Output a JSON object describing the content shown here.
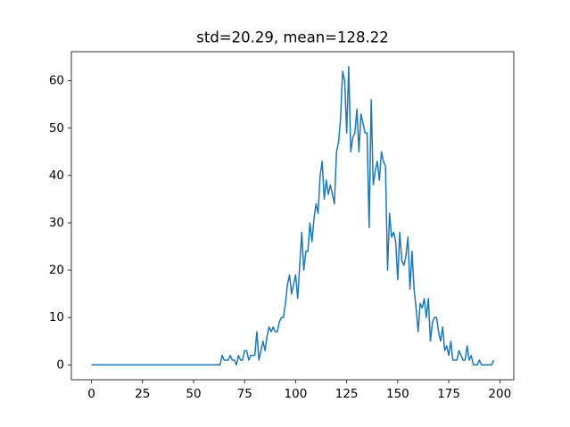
{
  "chart_data": {
    "type": "line",
    "title": "std=20.29, mean=128.22",
    "x": [
      0,
      1,
      2,
      3,
      4,
      5,
      6,
      7,
      8,
      9,
      10,
      11,
      12,
      13,
      14,
      15,
      16,
      17,
      18,
      19,
      20,
      21,
      22,
      23,
      24,
      25,
      26,
      27,
      28,
      29,
      30,
      31,
      32,
      33,
      34,
      35,
      36,
      37,
      38,
      39,
      40,
      41,
      42,
      43,
      44,
      45,
      46,
      47,
      48,
      49,
      50,
      51,
      52,
      53,
      54,
      55,
      56,
      57,
      58,
      59,
      60,
      61,
      62,
      63,
      64,
      65,
      66,
      67,
      68,
      69,
      70,
      71,
      72,
      73,
      74,
      75,
      76,
      77,
      78,
      79,
      80,
      81,
      82,
      83,
      84,
      85,
      86,
      87,
      88,
      89,
      90,
      91,
      92,
      93,
      94,
      95,
      96,
      97,
      98,
      99,
      100,
      101,
      102,
      103,
      104,
      105,
      106,
      107,
      108,
      109,
      110,
      111,
      112,
      113,
      114,
      115,
      116,
      117,
      118,
      119,
      120,
      121,
      122,
      123,
      124,
      125,
      126,
      127,
      128,
      129,
      130,
      131,
      132,
      133,
      134,
      135,
      136,
      137,
      138,
      139,
      140,
      141,
      142,
      143,
      144,
      145,
      146,
      147,
      148,
      149,
      150,
      151,
      152,
      153,
      154,
      155,
      156,
      157,
      158,
      159,
      160,
      161,
      162,
      163,
      164,
      165,
      166,
      167,
      168,
      169,
      170,
      171,
      172,
      173,
      174,
      175,
      176,
      177,
      178,
      179,
      180,
      181,
      182,
      183,
      184,
      185,
      186,
      187,
      188,
      189,
      190,
      191,
      192,
      193,
      194,
      195,
      196,
      197
    ],
    "values": [
      0,
      0,
      0,
      0,
      0,
      0,
      0,
      0,
      0,
      0,
      0,
      0,
      0,
      0,
      0,
      0,
      0,
      0,
      0,
      0,
      0,
      0,
      0,
      0,
      0,
      0,
      0,
      0,
      0,
      0,
      0,
      0,
      0,
      0,
      0,
      0,
      0,
      0,
      0,
      0,
      0,
      0,
      0,
      0,
      0,
      0,
      0,
      0,
      0,
      0,
      0,
      0,
      0,
      0,
      0,
      0,
      0,
      0,
      0,
      0,
      0,
      0,
      0,
      0,
      2,
      1,
      1,
      1,
      2,
      1,
      1,
      0,
      2,
      1,
      1,
      3,
      3,
      1,
      2,
      2,
      2,
      7,
      1,
      3,
      5,
      3,
      6,
      8,
      7,
      8,
      7,
      7,
      9,
      10,
      10,
      13,
      17,
      19,
      15,
      17,
      19,
      14,
      21,
      28,
      20,
      24,
      24,
      30,
      26,
      31,
      34,
      32,
      40,
      43,
      35,
      39,
      36,
      38,
      36,
      34,
      45,
      47,
      52,
      62,
      60,
      49,
      63,
      45,
      48,
      49,
      54,
      45,
      53,
      51,
      49,
      49,
      29,
      56,
      38,
      41,
      43,
      39,
      45,
      43,
      42,
      20,
      32,
      27,
      28,
      26,
      18,
      28,
      22,
      21,
      23,
      27,
      16,
      24,
      16,
      12,
      7,
      13,
      12,
      14,
      10,
      14,
      5,
      9,
      10,
      10,
      7,
      5,
      8,
      3,
      4,
      2,
      5,
      1,
      1,
      1,
      3,
      2,
      1,
      1,
      4,
      1,
      2,
      0,
      0,
      0,
      1,
      0,
      0,
      0,
      0,
      0,
      0,
      1
    ],
    "color": "#1f77b4",
    "xlim": [
      -9.85,
      206.85
    ],
    "ylim": [
      -3.15,
      66.15
    ],
    "xticks": [
      0,
      25,
      50,
      75,
      100,
      125,
      150,
      175,
      200
    ],
    "yticks": [
      0,
      10,
      20,
      30,
      40,
      50,
      60
    ]
  }
}
